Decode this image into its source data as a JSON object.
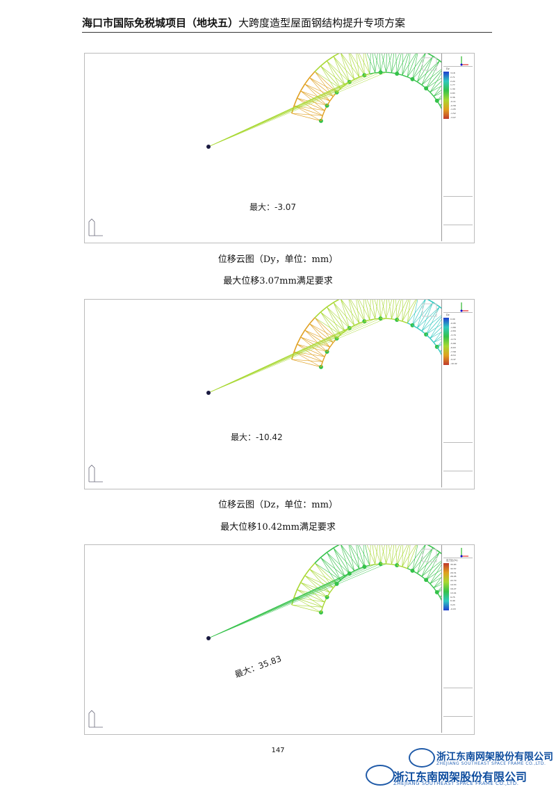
{
  "header": {
    "bold_title": "海口市国际免税城项目（地块五）",
    "subtitle": "大跨度造型屋面钢结构提升专项方案"
  },
  "figures": [
    {
      "max_label": "最大：-3.07",
      "legend_unit": "Dy",
      "legend_values": [
        "3.18",
        "2.71",
        "2.24",
        "1.77",
        "1.30",
        "0.83",
        "0.36",
        "-0.11",
        "-0.58",
        "-1.05",
        "-1.52",
        "-3.07"
      ],
      "caption": "位移云图（Dy，单位：mm）",
      "conclusion": "最大位移3.07mm满足要求"
    },
    {
      "max_label": "最大：-10.42",
      "legend_unit": "Dz",
      "legend_values": [
        "0.00",
        "-0.95",
        "-1.89",
        "-2.84",
        "-3.79",
        "-4.74",
        "-5.68",
        "-6.63",
        "-7.58",
        "-8.53",
        "-9.47",
        "-10.42"
      ],
      "caption": "位移云图（Dz，单位：mm）",
      "conclusion": "最大位移10.42mm满足要求"
    },
    {
      "max_label": "最大：35.83",
      "legend_unit": "应力比(%)",
      "legend_values": [
        "35.83",
        "32.57",
        "29.31",
        "26.05",
        "22.79",
        "19.53",
        "16.27",
        "13.01",
        "9.75",
        "6.49",
        "3.23",
        "-0.03"
      ],
      "caption": "",
      "conclusion": ""
    }
  ],
  "page_number": "147",
  "logo": {
    "cn": "浙江东南网架股份有限公司",
    "en": "ZHEJIANG SOUTHEAST SPACE FRAME CO.,LTD.",
    "mark_text": "东南"
  },
  "colors": {
    "green": "#35c24a",
    "yellow_green": "#a8d832",
    "orange": "#e0a020",
    "red": "#c0392b",
    "teal": "#30c8c0",
    "blue": "#1f3fd0",
    "logo_blue": "#0d4c9e"
  }
}
